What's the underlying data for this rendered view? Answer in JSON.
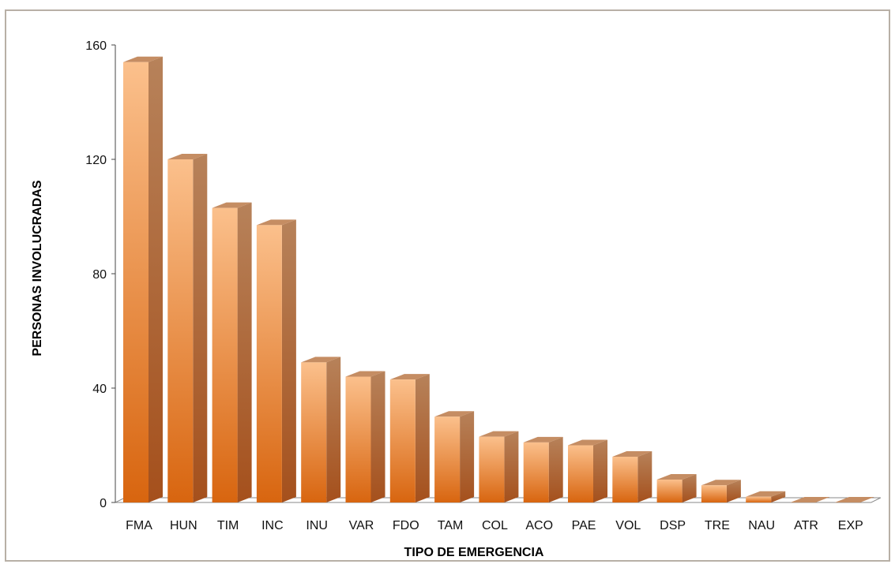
{
  "chart_data": {
    "type": "bar",
    "style": "3d-column",
    "title": "",
    "xlabel": "TIPO DE EMERGENCIA",
    "ylabel": "PERSONAS INVOLUCRADAS",
    "ylim": [
      0,
      160
    ],
    "yticks": [
      0,
      40,
      80,
      120,
      160
    ],
    "grid": false,
    "legend": "none",
    "categories": [
      "FMA",
      "HUN",
      "TIM",
      "INC",
      "INU",
      "VAR",
      "FDO",
      "TAM",
      "COL",
      "ACO",
      "PAE",
      "VOL",
      "DSP",
      "TRE",
      "NAU",
      "ATR",
      "EXP"
    ],
    "series": [
      {
        "values": [
          154,
          120,
          103,
          97,
          49,
          44,
          43,
          30,
          23,
          21,
          20,
          16,
          8,
          6,
          2,
          0,
          0
        ],
        "color": "#f39a4c"
      }
    ]
  }
}
